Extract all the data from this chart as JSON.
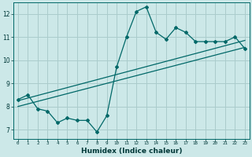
{
  "xlabel": "Humidex (Indice chaleur)",
  "ylabel": "",
  "background_color": "#cce8e8",
  "grid_color": "#aacccc",
  "line_color": "#006868",
  "x_data": [
    0,
    1,
    2,
    3,
    4,
    5,
    6,
    7,
    8,
    9,
    10,
    11,
    12,
    13,
    14,
    15,
    16,
    17,
    18,
    19,
    20,
    21,
    22,
    23
  ],
  "y_data": [
    8.3,
    8.5,
    7.9,
    7.8,
    7.3,
    7.5,
    7.4,
    7.4,
    6.9,
    7.6,
    9.7,
    11.0,
    12.1,
    12.3,
    11.2,
    10.9,
    11.4,
    11.2,
    10.8,
    10.8,
    10.8,
    10.8,
    11.0,
    10.5
  ],
  "reg1_start_x": 0,
  "reg1_start_y": 8.25,
  "reg1_end_x": 23,
  "reg1_end_y": 10.85,
  "reg2_start_x": 0,
  "reg2_start_y": 8.0,
  "reg2_end_x": 23,
  "reg2_end_y": 10.55,
  "ylim": [
    6.6,
    12.5
  ],
  "xlim": [
    -0.5,
    23.5
  ],
  "yticks": [
    7,
    8,
    9,
    10,
    11,
    12
  ],
  "xtick_labels": [
    "0",
    "1",
    "2",
    "3",
    "4",
    "5",
    "6",
    "7",
    "8",
    "9",
    "10",
    "11",
    "12",
    "13",
    "14",
    "15",
    "16",
    "17",
    "18",
    "19",
    "20",
    "21",
    "22",
    "23"
  ]
}
